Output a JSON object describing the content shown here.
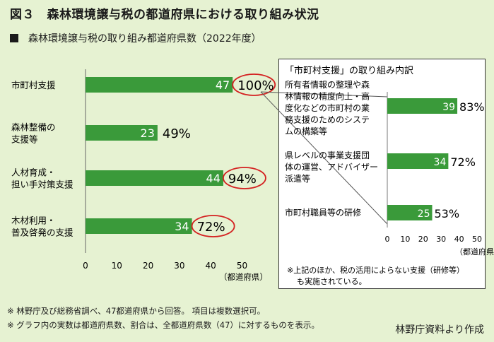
{
  "title": "図３　森林環境譲与税の都道府県における取り組み状況",
  "subtitle": "森林環境譲与税の取り組み都道府県数（2022年度）",
  "chart_data": [
    {
      "type": "bar",
      "orientation": "horizontal",
      "categories": [
        [
          "市町村支援"
        ],
        [
          "森林整備の",
          "支援等"
        ],
        [
          "人材育成・",
          "担い手対策支援"
        ],
        [
          "木材利用・",
          "普及啓発の支援"
        ]
      ],
      "values": [
        47,
        23,
        44,
        34
      ],
      "percent_labels": [
        "100%",
        "49%",
        "94%",
        "72%"
      ],
      "highlighted": [
        true,
        false,
        true,
        true
      ],
      "xlim": [
        0,
        50
      ],
      "xticks": [
        0,
        10,
        20,
        30,
        40,
        50
      ],
      "xlabel": "（都道府県）",
      "grid": false,
      "bar_color": "#3a9a3a"
    },
    {
      "type": "bar",
      "orientation": "horizontal",
      "title": "「市町村支援」の取り組み内訳",
      "categories": [
        [
          "所有者情報の整理や森",
          "林情報の精度向上・高",
          "度化などの市町村の業",
          "務支援のためのシステ",
          "ムの構築等"
        ],
        [
          "県レベルの事業支援団",
          "体の運営、アドバイザー",
          "派遣等"
        ],
        [
          "市町村職員等の研修"
        ]
      ],
      "values": [
        39,
        34,
        25
      ],
      "percent_labels": [
        "83%",
        "72%",
        "53%"
      ],
      "xlim": [
        0,
        50
      ],
      "xticks": [
        0,
        10,
        20,
        30,
        40,
        50
      ],
      "xlabel": "（都道府県）",
      "note": [
        "※上記のほか、税の活用によらない支援（研修等）",
        "も実施されている。"
      ],
      "bar_color": "#3a9a3a"
    }
  ],
  "footnotes": [
    "※ 林野庁及び総務省調べ、47都道府県から回答。 項目は複数選択可。",
    "※ グラフ内の実数は都道府県数、割合は、全都道府県数（47）に対するものを表示。"
  ],
  "source": "林野庁資料より作成",
  "colors": {
    "background": "#e6f2d2",
    "bar": "#3a9a3a",
    "highlight": "#d42020"
  }
}
